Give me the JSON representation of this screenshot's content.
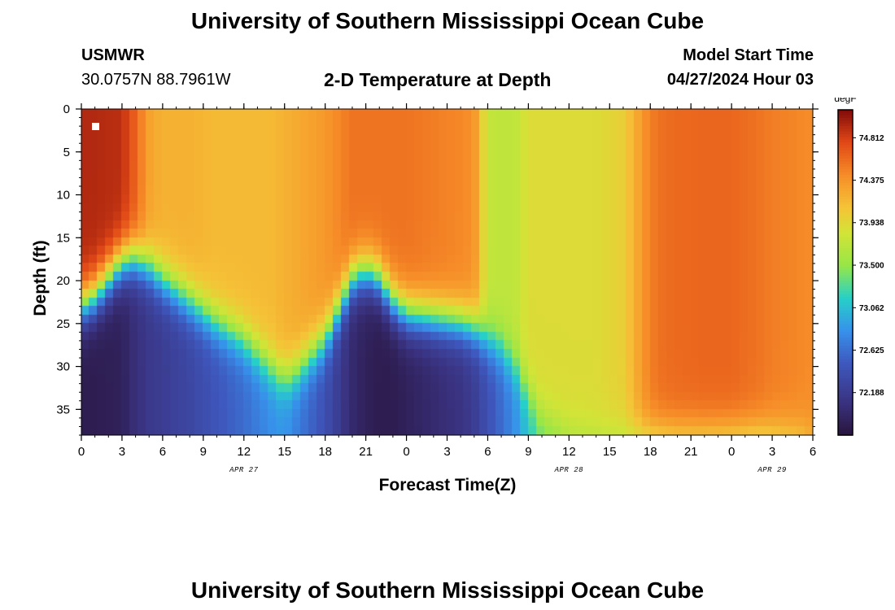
{
  "header": {
    "title_top": "University of Southern Mississippi Ocean Cube",
    "title_bottom": "University of Southern Mississippi Ocean Cube",
    "station_id": "USMWR",
    "station_coords": "30.0757N  88.7961W",
    "plot_title": "2-D Temperature at Depth",
    "model_label": "Model Start Time",
    "model_time": "04/27/2024 Hour 03"
  },
  "chart_data": {
    "type": "heatmap",
    "title": "2-D Temperature at Depth",
    "xlabel": "Forecast Time(Z)",
    "ylabel": "Depth (ft)",
    "x_range_hours": [
      0,
      54
    ],
    "y_range_ft": [
      0,
      38
    ],
    "x_tick_hours": [
      0,
      3,
      6,
      9,
      12,
      15,
      18,
      21,
      24,
      27,
      30,
      33,
      36,
      39,
      42,
      45,
      48,
      51,
      54
    ],
    "x_tick_labels": [
      "0",
      "3",
      "6",
      "9",
      "12",
      "15",
      "18",
      "21",
      "0",
      "3",
      "6",
      "9",
      "12",
      "15",
      "18",
      "21",
      "0",
      "3",
      "6"
    ],
    "y_ticks": [
      0,
      5,
      10,
      15,
      20,
      25,
      30,
      35
    ],
    "y_tick_labels": [
      "0",
      "5",
      "10",
      "15",
      "20",
      "25",
      "30",
      "35"
    ],
    "date_labels": [
      {
        "text": "APR 27",
        "hour": 12
      },
      {
        "text": "APR 28",
        "hour": 36
      },
      {
        "text": "APR 29",
        "hour": 51
      }
    ],
    "colorbar": {
      "units": "degF",
      "min": 71.75,
      "max": 75.1,
      "tick_values": [
        74.812,
        74.375,
        73.938,
        73.5,
        73.062,
        72.625,
        72.188
      ],
      "tick_labels": [
        "74.812",
        "74.375",
        "73.938",
        "73.500",
        "73.062",
        "72.625",
        "72.188"
      ]
    },
    "station_marker": {
      "hour": 1,
      "depth_ft": 2
    },
    "grid": false,
    "legend": "right (colorbar)",
    "depth_profile_hours": [
      0,
      1,
      3,
      4,
      5,
      6,
      8,
      10,
      12,
      13,
      14,
      15,
      16,
      18,
      19,
      20,
      21,
      22,
      23,
      24,
      26,
      28,
      29,
      30,
      31,
      32,
      33,
      34,
      36,
      38,
      40,
      42,
      43,
      44,
      46,
      48,
      50,
      51,
      53,
      54
    ],
    "surface_temp_degF": [
      74.93,
      74.93,
      74.9,
      74.65,
      74.3,
      74.2,
      74.2,
      74.15,
      74.15,
      74.15,
      74.15,
      74.2,
      74.25,
      74.35,
      74.45,
      74.55,
      74.55,
      74.55,
      74.55,
      74.55,
      74.5,
      74.45,
      74.4,
      73.75,
      73.72,
      73.72,
      73.9,
      73.9,
      73.9,
      73.9,
      74.0,
      74.5,
      74.58,
      74.6,
      74.62,
      74.62,
      74.55,
      74.5,
      74.45,
      74.42
    ],
    "thermocline_depth_ft": [
      23,
      22,
      18,
      17.5,
      18.5,
      20,
      22.5,
      25,
      27,
      28.5,
      30,
      31.5,
      30.5,
      27,
      23.5,
      20,
      19,
      20,
      22.5,
      24,
      24.5,
      25,
      25.5,
      27,
      28,
      30,
      33,
      36,
      37.5,
      38,
      38,
      38,
      38,
      38,
      38,
      38,
      38,
      38,
      38,
      38
    ],
    "bottom_temp_degF": [
      71.85,
      71.85,
      71.9,
      72.05,
      72.15,
      72.2,
      72.3,
      72.45,
      72.6,
      72.7,
      72.8,
      72.85,
      72.7,
      72.4,
      72.2,
      72.0,
      71.9,
      71.85,
      71.85,
      71.9,
      72.0,
      72.1,
      72.2,
      72.4,
      72.6,
      72.8,
      73.1,
      73.3,
      73.5,
      73.55,
      73.55,
      73.55,
      73.55,
      73.6,
      73.6,
      73.55,
      73.5,
      73.6,
      73.8,
      74.1
    ]
  }
}
